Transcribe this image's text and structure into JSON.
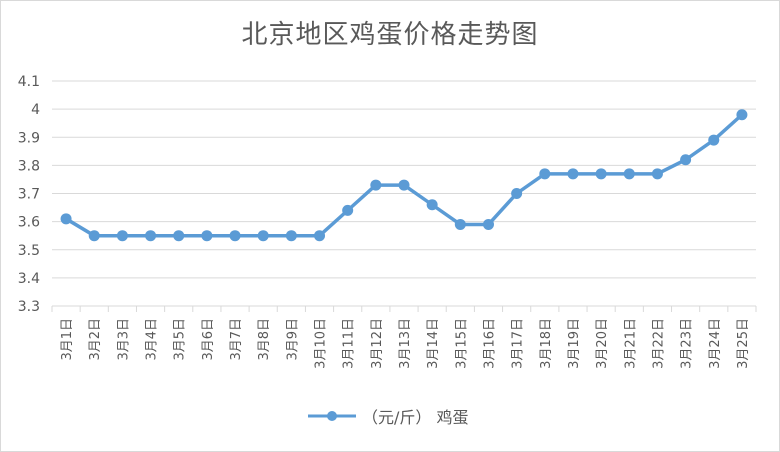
{
  "chart_data": {
    "type": "line",
    "title": "北京地区鸡蛋价格走势图",
    "xlabel": "",
    "ylabel": "",
    "categories": [
      "3月1日",
      "3月2日",
      "3月3日",
      "3月4日",
      "3月5日",
      "3月6日",
      "3月7日",
      "3月8日",
      "3月9日",
      "3月10日",
      "3月11日",
      "3月12日",
      "3月13日",
      "3月14日",
      "3月15日",
      "3月16日",
      "3月17日",
      "3月18日",
      "3月19日",
      "3月20日",
      "3月21日",
      "3月22日",
      "3月23日",
      "3月24日",
      "3月25日"
    ],
    "series": [
      {
        "name": "（元/斤） 鸡蛋",
        "values": [
          3.61,
          3.55,
          3.55,
          3.55,
          3.55,
          3.55,
          3.55,
          3.55,
          3.55,
          3.55,
          3.64,
          3.73,
          3.73,
          3.66,
          3.59,
          3.59,
          3.7,
          3.77,
          3.77,
          3.77,
          3.77,
          3.77,
          3.82,
          3.89,
          3.98
        ]
      }
    ],
    "ylim": [
      3.3,
      4.1
    ],
    "yticks": [
      "3.3",
      "3.4",
      "3.5",
      "3.6",
      "3.7",
      "3.8",
      "3.9",
      "4",
      "4.1"
    ],
    "grid": true,
    "legend_position": "bottom",
    "colors": {
      "line": "#5b9bd5",
      "grid": "#d9d9d9",
      "text": "#595959"
    }
  }
}
